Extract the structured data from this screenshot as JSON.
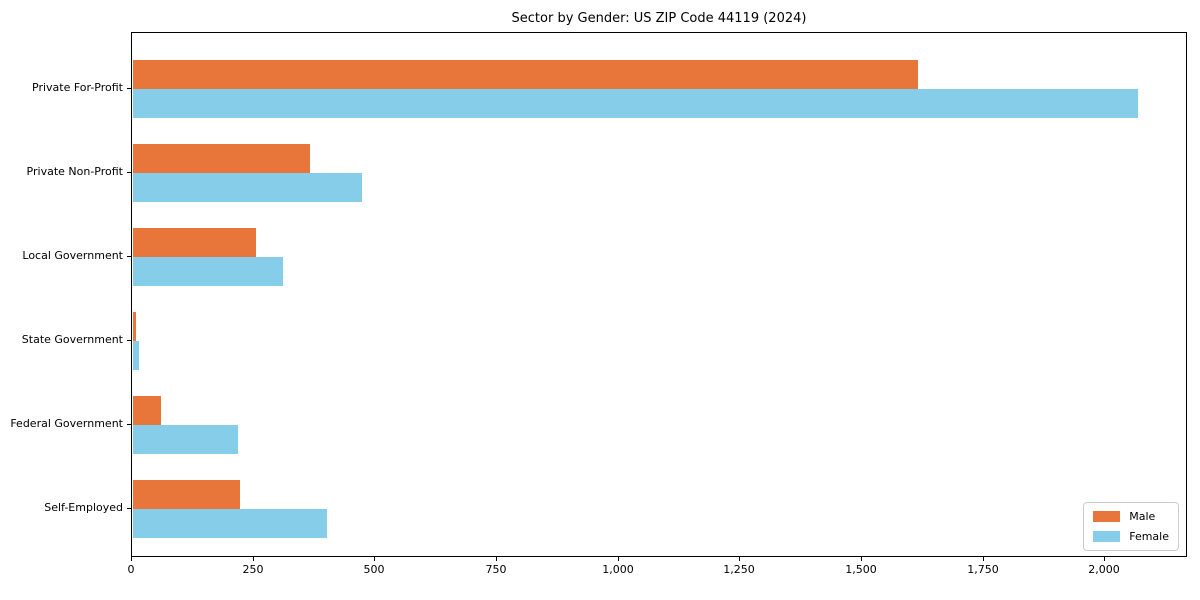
{
  "chart_data": {
    "type": "bar",
    "orientation": "horizontal",
    "title": "Sector by Gender: US ZIP Code 44119 (2024)",
    "categories": [
      "Private For-Profit",
      "Private Non-Profit",
      "Local Government",
      "State Government",
      "Federal Government",
      "Self-Employed"
    ],
    "series": [
      {
        "name": "Male",
        "color": "#e8763b",
        "values": [
          1613,
          364,
          253,
          6,
          58,
          220
        ]
      },
      {
        "name": "Female",
        "color": "#85cde9",
        "values": [
          2066,
          471,
          309,
          13,
          216,
          399
        ]
      }
    ],
    "xlabel": "",
    "ylabel": "",
    "xlim": [
      0,
      2170
    ],
    "xticks": {
      "values": [
        0,
        250,
        500,
        750,
        1000,
        1250,
        1500,
        1750,
        2000
      ],
      "labels": [
        "0",
        "250",
        "500",
        "750",
        "1,000",
        "1,250",
        "1,500",
        "1,750",
        "2,000"
      ]
    },
    "grid": false,
    "legend_position": "lower right"
  },
  "colors": {
    "male": "#e8763b",
    "female": "#85cde9",
    "spine": "#000000",
    "background": "#ffffff",
    "legend_border": "#cccccc"
  }
}
